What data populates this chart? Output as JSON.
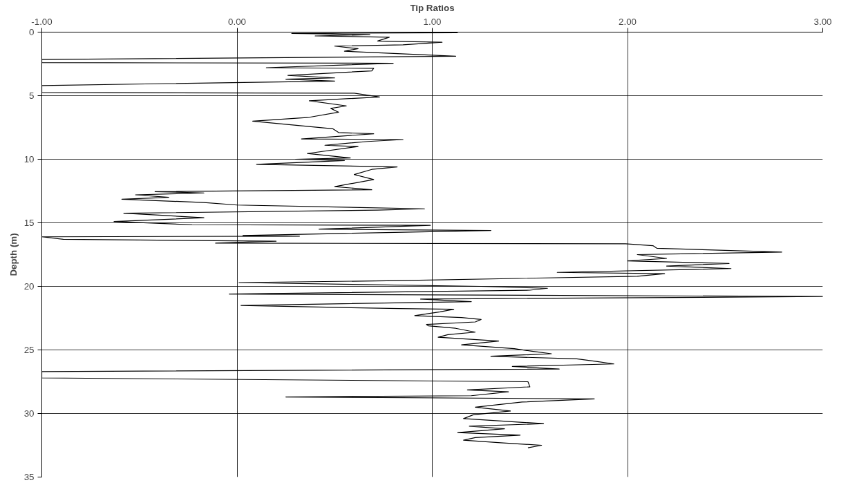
{
  "chart_data": {
    "type": "line",
    "xlabel": "Tip Ratios",
    "ylabel": "Depth (m)",
    "xlim": [
      -1,
      3
    ],
    "xticks": [
      {
        "value": -1,
        "label": "-1.00"
      },
      {
        "value": 0,
        "label": "0.00"
      },
      {
        "value": 1,
        "label": "1.00"
      },
      {
        "value": 2,
        "label": "2.00"
      },
      {
        "value": 3,
        "label": "3.00"
      }
    ],
    "ylim": [
      35,
      0
    ],
    "yticks": [
      0,
      5,
      10,
      15,
      20,
      25,
      30,
      35
    ],
    "grid": true,
    "marker": "none",
    "line_style": "solid",
    "series": [
      {
        "color": "#000000",
        "x": [
          1.13,
          0.28,
          0.68,
          0.4,
          0.78,
          0.72,
          1.05,
          0.85,
          0.5,
          0.62,
          0.55,
          1.12,
          -1.0,
          -1.0,
          0.8,
          0.15,
          0.7,
          0.69,
          0.26,
          0.5,
          0.25,
          0.5,
          -0.36,
          -1.0,
          -1.0,
          0.6,
          0.73,
          0.37,
          0.56,
          0.48,
          0.52,
          0.37,
          0.08,
          0.49,
          0.52,
          0.7,
          0.33,
          0.85,
          0.67,
          0.45,
          0.62,
          0.36,
          0.58,
          0.3,
          0.55,
          0.1,
          0.82,
          0.69,
          0.6,
          0.7,
          0.5,
          0.69,
          -0.42,
          -0.17,
          -0.52,
          -0.35,
          -0.59,
          -0.17,
          0.0,
          0.96,
          0.72,
          -0.58,
          -0.4,
          -0.17,
          -0.63,
          -0.23,
          0.99,
          0.42,
          1.3,
          0.03,
          0.32,
          -1.0,
          -0.89,
          0.2,
          -0.11,
          1.99,
          2.13,
          2.15,
          2.79,
          2.05,
          2.2,
          2.0,
          2.52,
          2.2,
          2.53,
          1.64,
          2.19,
          2.05,
          0.83,
          0.01,
          1.25,
          1.59,
          1.5,
          -0.04,
          3.0,
          0.94,
          1.2,
          0.02,
          0.83,
          1.11,
          1.04,
          0.91,
          1.15,
          1.25,
          1.22,
          0.97,
          0.98,
          1.12,
          1.22,
          1.08,
          1.03,
          1.34,
          1.15,
          1.42,
          1.51,
          1.61,
          1.3,
          1.74,
          1.84,
          1.93,
          1.41,
          1.65,
          -1.0,
          -1.0,
          1.49,
          1.5,
          1.18,
          1.39,
          1.2,
          0.25,
          1.83,
          1.46,
          1.22,
          1.4,
          1.21,
          1.16,
          1.57,
          1.19,
          1.37,
          1.13,
          1.45,
          1.22,
          1.16,
          1.35,
          1.56,
          1.49
        ],
        "values": [
          0.05,
          0.1,
          0.2,
          0.3,
          0.4,
          0.7,
          0.8,
          1.0,
          1.1,
          1.3,
          1.5,
          1.9,
          2.15,
          2.4,
          2.45,
          2.8,
          2.85,
          3.05,
          3.4,
          3.6,
          3.7,
          3.85,
          4.05,
          4.2,
          4.75,
          4.8,
          5.1,
          5.4,
          5.8,
          6.0,
          6.3,
          6.7,
          7.0,
          7.6,
          7.9,
          8.0,
          8.4,
          8.45,
          8.6,
          8.9,
          9.0,
          9.55,
          9.9,
          10.0,
          10.1,
          10.4,
          10.6,
          10.8,
          11.2,
          11.6,
          12.15,
          12.4,
          12.55,
          12.65,
          12.8,
          13.0,
          13.15,
          13.4,
          13.6,
          13.9,
          14.0,
          14.25,
          14.4,
          14.6,
          14.9,
          15.15,
          15.2,
          15.5,
          15.6,
          16.0,
          16.05,
          16.1,
          16.3,
          16.45,
          16.6,
          16.65,
          16.8,
          17.0,
          17.3,
          17.5,
          17.8,
          18.0,
          18.2,
          18.4,
          18.6,
          18.9,
          19.0,
          19.2,
          19.55,
          19.7,
          20.0,
          20.15,
          20.3,
          20.6,
          20.8,
          21.0,
          21.2,
          21.5,
          21.75,
          21.8,
          22.0,
          22.3,
          22.45,
          22.6,
          22.8,
          23.0,
          23.1,
          23.3,
          23.6,
          23.8,
          24.0,
          24.3,
          24.6,
          24.9,
          25.1,
          25.3,
          25.5,
          25.7,
          25.9,
          26.1,
          26.3,
          26.5,
          26.7,
          27.2,
          27.5,
          27.9,
          28.15,
          28.3,
          28.6,
          28.7,
          28.85,
          29.1,
          29.5,
          29.8,
          30.1,
          30.4,
          30.8,
          31.0,
          31.2,
          31.5,
          31.7,
          31.9,
          32.1,
          32.3,
          32.5,
          32.7
        ]
      }
    ]
  }
}
